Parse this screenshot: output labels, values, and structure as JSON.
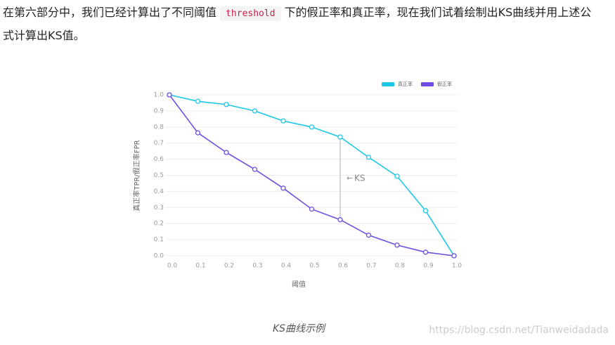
{
  "paragraph": {
    "text_before": "在第六部分中，我们已经计算出了不同阈值 ",
    "code": "threshold",
    "text_after": " 下的假正率和真正率，现在我们试着绘制出KS曲线并用上述公式计算出KS值。"
  },
  "chart_data": {
    "type": "line",
    "x": [
      0,
      0.1,
      0.2,
      0.3,
      0.4,
      0.5,
      0.6,
      0.7,
      0.8,
      0.9,
      1
    ],
    "series": [
      {
        "name": "真正率",
        "color": "#1cc7e8",
        "values": [
          1.0,
          0.96,
          0.94,
          0.9,
          0.838,
          0.8,
          0.738,
          0.612,
          0.494,
          0.28,
          0
        ]
      },
      {
        "name": "假正率",
        "color": "#6e4ee0",
        "values": [
          1.0,
          0.764,
          0.642,
          0.537,
          0.42,
          0.29,
          0.224,
          0.128,
          0.066,
          0.022,
          0
        ]
      }
    ],
    "xlim": [
      0,
      1
    ],
    "xticks": [
      {
        "value": 0,
        "label": "0.0"
      },
      0.1,
      0.2,
      0.3,
      0.4,
      0.5,
      0.6,
      0.7,
      0.8,
      0.9,
      {
        "value": 1,
        "label": "1.0"
      }
    ],
    "ylim": [
      0,
      1
    ],
    "yticks": [
      {
        "value": 0,
        "label": "0.0"
      },
      0.1,
      0.2,
      0.3,
      0.4,
      0.5,
      0.6,
      0.7,
      0.8,
      0.9,
      {
        "value": 1,
        "label": "1.0"
      }
    ],
    "xlabel": "阈值",
    "ylabel": "真正率TPR/假正率FPR",
    "annotation": "KS",
    "grid": true,
    "legend": "top-right"
  },
  "caption": "KS曲线示例",
  "watermark": "https://blog.csdn.net/Tianweidadada"
}
